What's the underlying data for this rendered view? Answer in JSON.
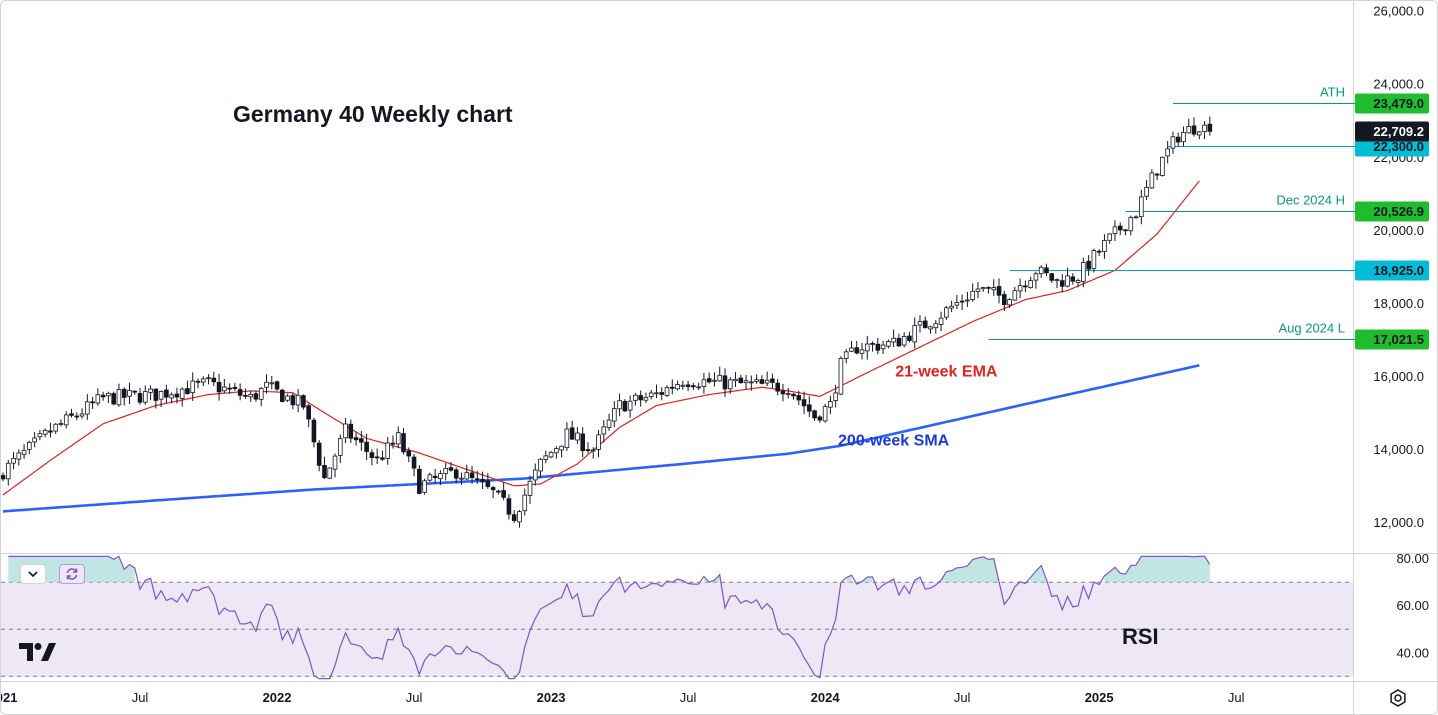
{
  "chart_data": {
    "type": "candlestick",
    "title": "Germany 40 Weekly chart",
    "x_ticks": [
      {
        "label": "2021",
        "bold": true,
        "week": 1
      },
      {
        "label": "Jul",
        "bold": false,
        "week": 27
      },
      {
        "label": "2022",
        "bold": true,
        "week": 53
      },
      {
        "label": "Jul",
        "bold": false,
        "week": 79
      },
      {
        "label": "2023",
        "bold": true,
        "week": 105
      },
      {
        "label": "Jul",
        "bold": false,
        "week": 131
      },
      {
        "label": "2024",
        "bold": true,
        "week": 157
      },
      {
        "label": "Jul",
        "bold": false,
        "week": 183
      },
      {
        "label": "2025",
        "bold": true,
        "week": 209
      },
      {
        "label": "Jul",
        "bold": false,
        "week": 235
      }
    ],
    "price_axis": {
      "ticks": [
        "12,000.0",
        "14,000.0",
        "16,000.0",
        "18,000.0",
        "20,000.0",
        "22,000.0",
        "24,000.0",
        "26,000.0"
      ],
      "tick_values": [
        12000,
        14000,
        16000,
        18000,
        20000,
        22000,
        24000,
        26000
      ],
      "range": [
        11160,
        26280
      ]
    },
    "price_path_anchors": [
      [
        1,
        13400
      ],
      [
        10,
        14500
      ],
      [
        20,
        15400
      ],
      [
        30,
        15500
      ],
      [
        40,
        15800
      ],
      [
        48,
        15400
      ],
      [
        51,
        15700
      ],
      [
        58,
        15200
      ],
      [
        62,
        13200
      ],
      [
        66,
        14500
      ],
      [
        72,
        13700
      ],
      [
        76,
        14300
      ],
      [
        80,
        13000
      ],
      [
        87,
        13400
      ],
      [
        94,
        12800
      ],
      [
        98,
        12200
      ],
      [
        103,
        13600
      ],
      [
        108,
        14400
      ],
      [
        113,
        14000
      ],
      [
        118,
        15200
      ],
      [
        125,
        15500
      ],
      [
        130,
        15900
      ],
      [
        140,
        15800
      ],
      [
        150,
        15700
      ],
      [
        155,
        14900
      ],
      [
        158,
        15200
      ],
      [
        160,
        16300
      ],
      [
        163,
        16800
      ],
      [
        170,
        16900
      ],
      [
        178,
        17600
      ],
      [
        186,
        18400
      ],
      [
        191,
        18150
      ],
      [
        197,
        18900
      ],
      [
        201,
        18600
      ],
      [
        205,
        18750
      ],
      [
        210,
        19600
      ],
      [
        216,
        20500
      ],
      [
        220,
        21700
      ],
      [
        224,
        22600
      ],
      [
        228,
        22900
      ],
      [
        230,
        22709.2
      ]
    ],
    "last_close": 22709.2,
    "seed": 7,
    "ema_21_week": {
      "name": "21-week EMA",
      "color": "#e0231f",
      "anchors": [
        [
          1,
          12750
        ],
        [
          10,
          13700
        ],
        [
          20,
          14700
        ],
        [
          30,
          15200
        ],
        [
          40,
          15500
        ],
        [
          48,
          15600
        ],
        [
          56,
          15550
        ],
        [
          62,
          15000
        ],
        [
          70,
          14300
        ],
        [
          80,
          13900
        ],
        [
          90,
          13400
        ],
        [
          98,
          13000
        ],
        [
          103,
          13050
        ],
        [
          110,
          13600
        ],
        [
          118,
          14600
        ],
        [
          125,
          15200
        ],
        [
          135,
          15500
        ],
        [
          145,
          15700
        ],
        [
          150,
          15600
        ],
        [
          156,
          15450
        ],
        [
          165,
          16100
        ],
        [
          175,
          16800
        ],
        [
          185,
          17500
        ],
        [
          195,
          18100
        ],
        [
          203,
          18350
        ],
        [
          212,
          18900
        ],
        [
          220,
          19900
        ],
        [
          228,
          21350
        ]
      ]
    },
    "sma_200_week": {
      "name": "200-week SMA",
      "color": "#2962ff",
      "anchors": [
        [
          1,
          12300
        ],
        [
          30,
          12600
        ],
        [
          60,
          12900
        ],
        [
          100,
          13200
        ],
        [
          130,
          13600
        ],
        [
          150,
          13880
        ],
        [
          160,
          14100
        ],
        [
          200,
          15400
        ],
        [
          228,
          16300
        ]
      ]
    },
    "levels": [
      {
        "label": "ATH",
        "price": 23479.0,
        "value_label": "23,479.0",
        "color": "#089981",
        "start_week": 223,
        "tag_bg": "#1fbd2e"
      },
      {
        "label": "",
        "price": 22300.0,
        "value_label": "22,300.0",
        "color": "#00a6c6",
        "start_week": 222,
        "tag_bg": "#00bcd4"
      },
      {
        "label": "Dec 2024 H",
        "price": 20526.9,
        "value_label": "20,526.9",
        "color": "#089981",
        "start_week": 214,
        "tag_bg": "#1fbd2e"
      },
      {
        "label": "",
        "price": 18925.0,
        "value_label": "18,925.0",
        "color": "#00a6c6",
        "start_week": 192,
        "tag_bg": "#00bcd4"
      },
      {
        "label": "Aug 2024 L",
        "price": 17021.5,
        "value_label": "17,021.5",
        "color": "#089981",
        "start_week": 188,
        "tag_bg": "#1fbd2e"
      }
    ],
    "last_price_label": "22,709.2",
    "annotations": [
      {
        "text": "21-week EMA",
        "color": "#e0231f",
        "week": 180,
        "price": 16000
      },
      {
        "text": "200-week SMA",
        "color": "#1a3ad8",
        "week": 170,
        "price": 14100
      }
    ],
    "rsi": {
      "label": "RSI",
      "color": "#7e57c2",
      "band_fill": "#ede7f6",
      "ticks": [
        "40.00",
        "60.00",
        "80.00"
      ],
      "tick_values": [
        40,
        60,
        80
      ],
      "range": [
        28,
        82
      ],
      "upper": 70,
      "mid": 50,
      "lower": 30
    }
  },
  "icons": {
    "collapse": "chevron-down-icon",
    "refresh": "refresh-icon",
    "logo": "tradingview-logo",
    "settings": "gear-icon"
  }
}
